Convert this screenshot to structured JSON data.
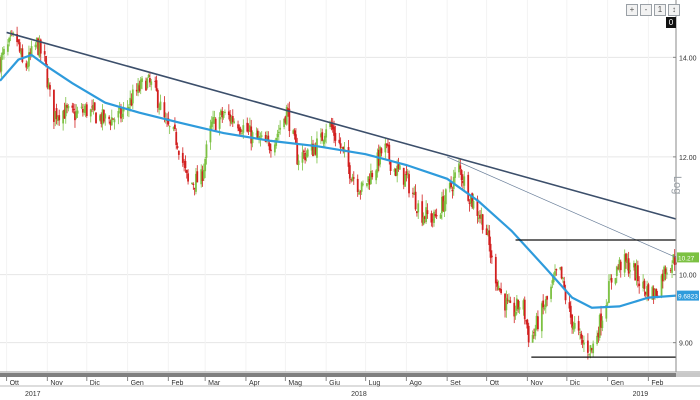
{
  "toolbar": {
    "buttons": [
      "+",
      "-",
      "1",
      "↕"
    ],
    "zero_label": "0"
  },
  "scale_label": "Log",
  "chart_data": {
    "type": "candlestick",
    "y_scale": "log",
    "ylim": [
      8.6,
      15.3
    ],
    "y_ticks": [
      {
        "value": 14.0,
        "label": "14.00"
      },
      {
        "value": 12.0,
        "label": "12.00"
      },
      {
        "value": 10.0,
        "label": "10.00"
      },
      {
        "value": 9.0,
        "label": "9.00"
      }
    ],
    "x_range": [
      "2017-09-26",
      "2019-02-22"
    ],
    "month_ticks": [
      {
        "date": "2017-10-01",
        "label": "Ott"
      },
      {
        "date": "2017-11-01",
        "label": "Nov"
      },
      {
        "date": "2017-12-01",
        "label": "Dic"
      },
      {
        "date": "2018-01-01",
        "label": "Gen"
      },
      {
        "date": "2018-02-01",
        "label": "Feb"
      },
      {
        "date": "2018-03-01",
        "label": "Mar"
      },
      {
        "date": "2018-04-01",
        "label": "Apr"
      },
      {
        "date": "2018-05-01",
        "label": "Mag"
      },
      {
        "date": "2018-06-01",
        "label": "Giu"
      },
      {
        "date": "2018-07-01",
        "label": "Lug"
      },
      {
        "date": "2018-08-01",
        "label": "Ago"
      },
      {
        "date": "2018-09-01",
        "label": "Set"
      },
      {
        "date": "2018-10-01",
        "label": "Ott"
      },
      {
        "date": "2018-11-01",
        "label": "Nov"
      },
      {
        "date": "2018-12-01",
        "label": "Dic"
      },
      {
        "date": "2019-01-01",
        "label": "Gen"
      },
      {
        "date": "2019-02-01",
        "label": "Feb"
      }
    ],
    "year_ticks": [
      {
        "date": "2017-10-15",
        "label": "2017"
      },
      {
        "date": "2018-06-20",
        "label": "2018"
      },
      {
        "date": "2019-01-20",
        "label": "2019"
      }
    ],
    "price_path": [
      [
        "2017-09-26",
        13.9
      ],
      [
        "2017-10-04",
        14.3
      ],
      [
        "2017-10-08",
        14.5
      ],
      [
        "2017-10-14",
        13.7
      ],
      [
        "2017-10-24",
        14.3
      ],
      [
        "2017-10-30",
        13.9
      ],
      [
        "2017-11-05",
        12.8
      ],
      [
        "2017-11-12",
        12.9
      ],
      [
        "2017-11-20",
        12.8
      ],
      [
        "2017-12-01",
        12.9
      ],
      [
        "2017-12-15",
        12.7
      ],
      [
        "2017-12-28",
        12.8
      ],
      [
        "2018-01-06",
        13.2
      ],
      [
        "2018-01-15",
        13.5
      ],
      [
        "2018-01-22",
        13.3
      ],
      [
        "2018-01-30",
        12.6
      ],
      [
        "2018-02-08",
        12.3
      ],
      [
        "2018-02-16",
        11.5
      ],
      [
        "2018-02-26",
        11.6
      ],
      [
        "2018-03-06",
        12.6
      ],
      [
        "2018-03-15",
        12.8
      ],
      [
        "2018-03-25",
        12.7
      ],
      [
        "2018-04-05",
        12.4
      ],
      [
        "2018-04-18",
        12.2
      ],
      [
        "2018-04-26",
        12.5
      ],
      [
        "2018-05-02",
        12.9
      ],
      [
        "2018-05-10",
        12.0
      ],
      [
        "2018-05-20",
        12.1
      ],
      [
        "2018-05-28",
        12.3
      ],
      [
        "2018-06-02",
        12.7
      ],
      [
        "2018-06-10",
        12.3
      ],
      [
        "2018-06-18",
        11.8
      ],
      [
        "2018-06-28",
        11.4
      ],
      [
        "2018-07-08",
        11.8
      ],
      [
        "2018-07-15",
        12.2
      ],
      [
        "2018-07-22",
        11.8
      ],
      [
        "2018-08-01",
        11.6
      ],
      [
        "2018-08-12",
        11.0
      ],
      [
        "2018-08-22",
        10.9
      ],
      [
        "2018-09-01",
        11.3
      ],
      [
        "2018-09-10",
        11.8
      ],
      [
        "2018-09-20",
        11.2
      ],
      [
        "2018-09-30",
        10.8
      ],
      [
        "2018-10-05",
        10.2
      ],
      [
        "2018-10-12",
        9.7
      ],
      [
        "2018-10-20",
        9.4
      ],
      [
        "2018-10-28",
        9.6
      ],
      [
        "2018-11-03",
        9.0
      ],
      [
        "2018-11-09",
        9.3
      ],
      [
        "2018-11-16",
        9.6
      ],
      [
        "2018-11-25",
        10.1
      ],
      [
        "2018-12-03",
        9.4
      ],
      [
        "2018-12-12",
        9.0
      ],
      [
        "2018-12-20",
        8.9
      ],
      [
        "2018-12-28",
        9.4
      ],
      [
        "2019-01-05",
        10.0
      ],
      [
        "2019-01-12",
        10.2
      ],
      [
        "2019-01-20",
        10.1
      ],
      [
        "2019-01-28",
        9.8
      ],
      [
        "2019-02-06",
        9.7
      ],
      [
        "2019-02-14",
        10.1
      ],
      [
        "2019-02-22",
        10.27
      ]
    ],
    "moving_average": [
      [
        "2017-09-26",
        13.5
      ],
      [
        "2017-10-10",
        13.95
      ],
      [
        "2017-10-20",
        14.05
      ],
      [
        "2017-11-01",
        13.8
      ],
      [
        "2017-11-20",
        13.45
      ],
      [
        "2017-12-15",
        13.05
      ],
      [
        "2018-01-10",
        12.85
      ],
      [
        "2018-02-10",
        12.65
      ],
      [
        "2018-03-15",
        12.45
      ],
      [
        "2018-04-20",
        12.3
      ],
      [
        "2018-05-25",
        12.2
      ],
      [
        "2018-07-01",
        12.05
      ],
      [
        "2018-08-01",
        11.85
      ],
      [
        "2018-09-01",
        11.6
      ],
      [
        "2018-09-25",
        11.2
      ],
      [
        "2018-10-20",
        10.7
      ],
      [
        "2018-11-15",
        10.1
      ],
      [
        "2018-12-05",
        9.65
      ],
      [
        "2018-12-20",
        9.5
      ],
      [
        "2019-01-10",
        9.52
      ],
      [
        "2019-02-01",
        9.65
      ],
      [
        "2019-02-22",
        9.68
      ]
    ],
    "trendlines": [
      {
        "from": [
          "2017-10-01",
          14.55
        ],
        "to": [
          "2019-02-22",
          10.9
        ],
        "color": "#3c4f6b",
        "width": 1.6
      },
      {
        "from": [
          "2018-09-01",
          12.0
        ],
        "to": [
          "2019-02-22",
          10.27
        ],
        "color": "#6a7f9a",
        "width": 0.7
      }
    ],
    "range_lines": [
      {
        "value": 10.55,
        "from": "2018-10-23",
        "to": "2019-02-22"
      },
      {
        "value": 8.8,
        "from": "2018-11-04",
        "to": "2019-02-22"
      }
    ],
    "price_markers": [
      {
        "value": 10.27,
        "label": "10.27",
        "color": "#7cc142"
      },
      {
        "value": 9.68,
        "label": "9.6823",
        "color": "#2e9bdc"
      }
    ],
    "colors": {
      "up": "#7cc142",
      "down": "#d21f1f",
      "ma": "#2e9bdc",
      "grid": "#e6e6e6",
      "axis": "#888888"
    }
  }
}
